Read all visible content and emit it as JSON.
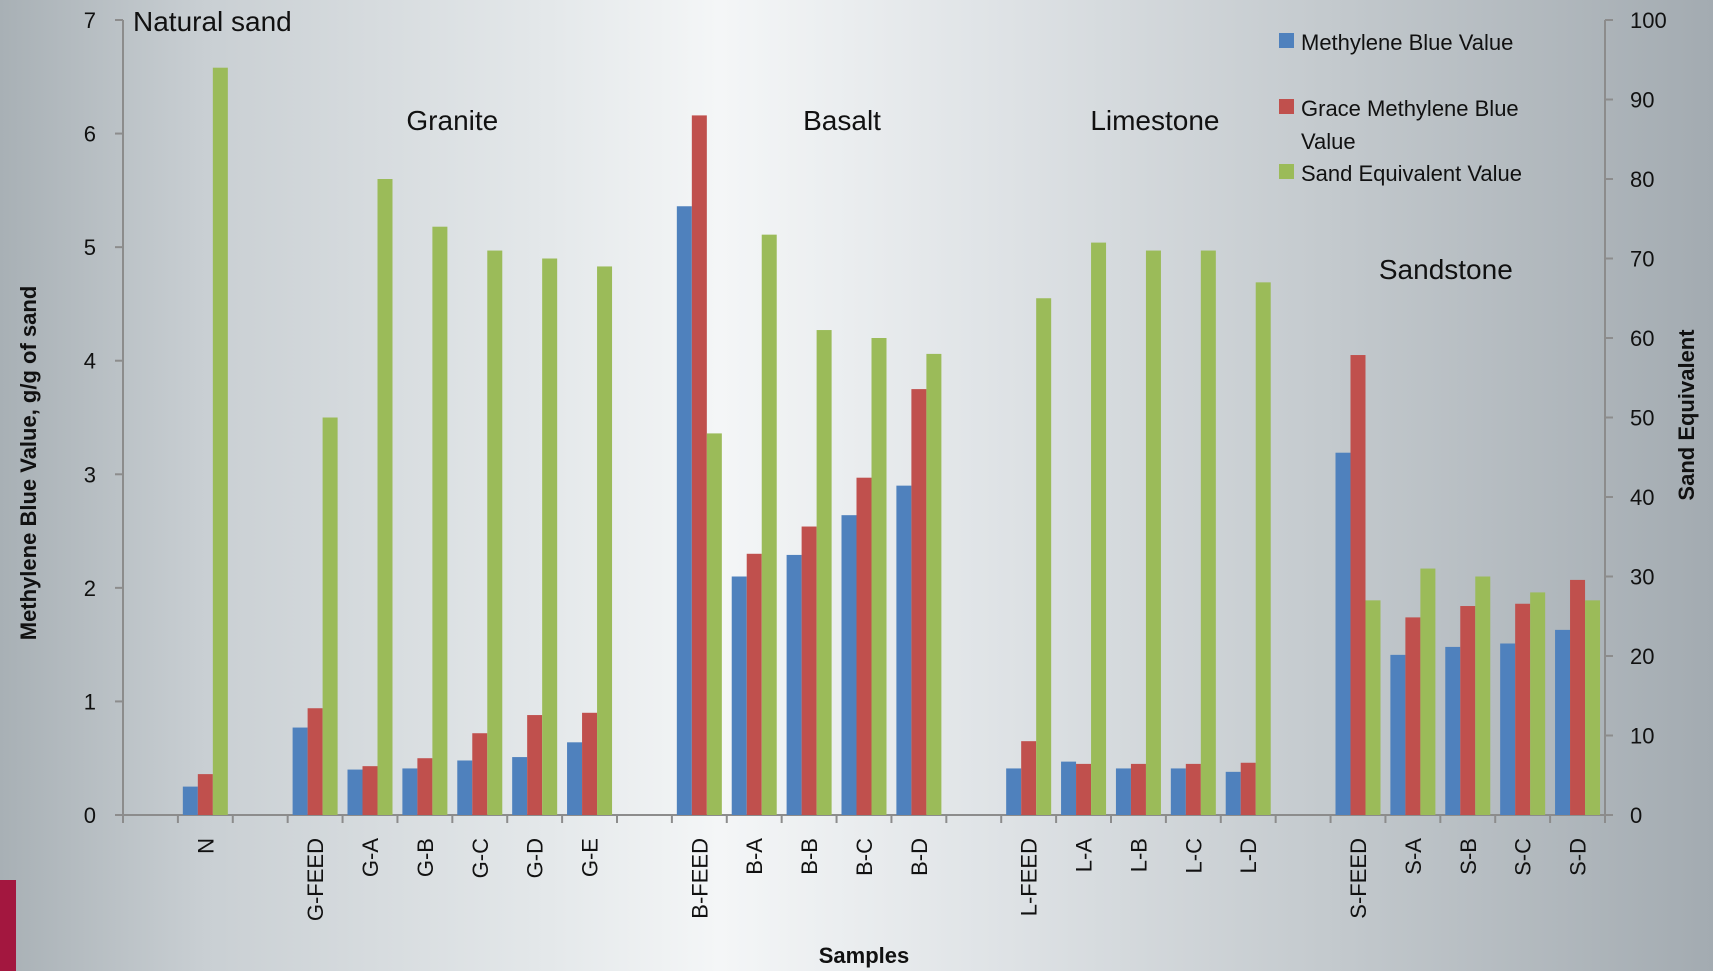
{
  "chart_data": {
    "type": "bar",
    "categories": [
      "N",
      "G-FEED",
      "G-A",
      "G-B",
      "G-C",
      "G-D",
      "G-E",
      "B-FEED",
      "B-A",
      "B-B",
      "B-C",
      "B-D",
      "L-FEED",
      "L-A",
      "L-B",
      "L-C",
      "L-D",
      "S-FEED",
      "S-A",
      "S-B",
      "S-C",
      "S-D"
    ],
    "category_slots": [
      1,
      3,
      4,
      5,
      6,
      7,
      8,
      10,
      11,
      12,
      13,
      14,
      16,
      17,
      18,
      19,
      20,
      22,
      23,
      24,
      25,
      26
    ],
    "slot_count": 27,
    "series": [
      {
        "name": "Methylene Blue Value",
        "axis": "left",
        "color": "#4f81bd",
        "values": [
          0.25,
          0.77,
          0.4,
          0.41,
          0.48,
          0.51,
          0.64,
          5.36,
          2.1,
          2.29,
          2.64,
          2.9,
          0.41,
          0.47,
          0.41,
          0.41,
          0.38,
          3.19,
          1.41,
          1.48,
          1.51,
          1.63
        ]
      },
      {
        "name": "Grace Methylene Blue Value",
        "axis": "left",
        "color": "#c0504d",
        "values": [
          0.36,
          0.94,
          0.43,
          0.5,
          0.72,
          0.88,
          0.9,
          6.16,
          2.3,
          2.54,
          2.97,
          3.75,
          0.65,
          0.45,
          0.45,
          0.45,
          0.46,
          4.05,
          1.74,
          1.84,
          1.86,
          2.07
        ]
      },
      {
        "name": "Sand Equivalent Value",
        "axis": "right",
        "color": "#9bbb59",
        "values": [
          94,
          50,
          80,
          74,
          71,
          70,
          69,
          48,
          73,
          61,
          60,
          58,
          65,
          72,
          71,
          71,
          67,
          27,
          31,
          30,
          28,
          27
        ]
      }
    ],
    "left_axis": {
      "title": "Methylene Blue Value, g/g of sand",
      "ylim": [
        0,
        7
      ],
      "ticks": [
        "0",
        "1",
        "2",
        "3",
        "4",
        "5",
        "6",
        "7"
      ]
    },
    "right_axis": {
      "title": "Sand Equivalent",
      "ylim": [
        0,
        100
      ],
      "ticks": [
        "0",
        "10",
        "20",
        "30",
        "40",
        "50",
        "60",
        "70",
        "80",
        "90",
        "100"
      ]
    },
    "xlabel": "Samples",
    "group_labels": [
      {
        "text": "Natural sand",
        "slot": 0.9
      },
      {
        "text": "Granite",
        "slot": 6
      },
      {
        "text": "Basalt",
        "slot": 13.1
      },
      {
        "text": "Limestone",
        "slot": 18.8
      },
      {
        "text": "Sandstone",
        "slot": 24.1
      }
    ],
    "legend": {
      "placement": "top-right"
    },
    "grid": false
  }
}
